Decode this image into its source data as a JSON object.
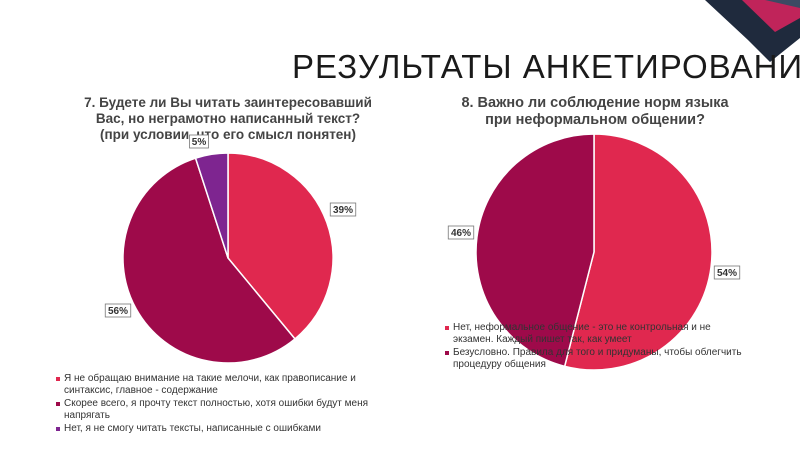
{
  "slide": {
    "title": "РЕЗУЛЬТАТЫ АНКЕТИРОВАНИЯ"
  },
  "colors": {
    "deco_dark": "#1f2a3d",
    "deco_accent": "#c0245a",
    "slice_red": "#e0284f",
    "slice_maroon": "#9e0a4a",
    "slice_purple": "#7e2590"
  },
  "chart_data": [
    {
      "type": "pie",
      "title": "7. Будете ли Вы читать заинтересовавший Вас, но неграмотно написанный текст? (при условии, что его смысл понятен)",
      "title_lines": [
        "7. Будете ли Вы читать заинтересовавший",
        "Вас, но неграмотно написанный текст?",
        "(при условии, что его смысл понятен)"
      ],
      "slices": [
        {
          "label": "Я не обращаю внимание на такие мелочи, как правописание и синтаксис, главное - содержание",
          "value": 39,
          "data_label": "39%",
          "color": "#e0284f"
        },
        {
          "label": "Скорее всего, я прочту текст полностью, хотя ошибки будут меня напрягать",
          "value": 56,
          "data_label": "56%",
          "color": "#9e0a4a"
        },
        {
          "label": "Нет, я не смогу читать тексты, написанные с ошибками",
          "value": 5,
          "data_label": "5%",
          "color": "#7e2590"
        }
      ],
      "legend_placement": "bottom"
    },
    {
      "type": "pie",
      "title": "8. Важно ли соблюдение норм языка при неформальном общении?",
      "title_lines": [
        "8. Важно ли соблюдение норм языка",
        "при неформальном общении?"
      ],
      "slices": [
        {
          "label": "Нет, неформальное общение - это не контрольная и не экзамен. Каждый пишет так, как умеет",
          "value": 54,
          "data_label": "54%",
          "color": "#e0284f"
        },
        {
          "label": "Безусловно. Правила для того и придуманы, чтобы облегчить процедуру общения",
          "value": 46,
          "data_label": "46%",
          "color": "#9e0a4a"
        }
      ],
      "legend_placement": "bottom"
    }
  ]
}
